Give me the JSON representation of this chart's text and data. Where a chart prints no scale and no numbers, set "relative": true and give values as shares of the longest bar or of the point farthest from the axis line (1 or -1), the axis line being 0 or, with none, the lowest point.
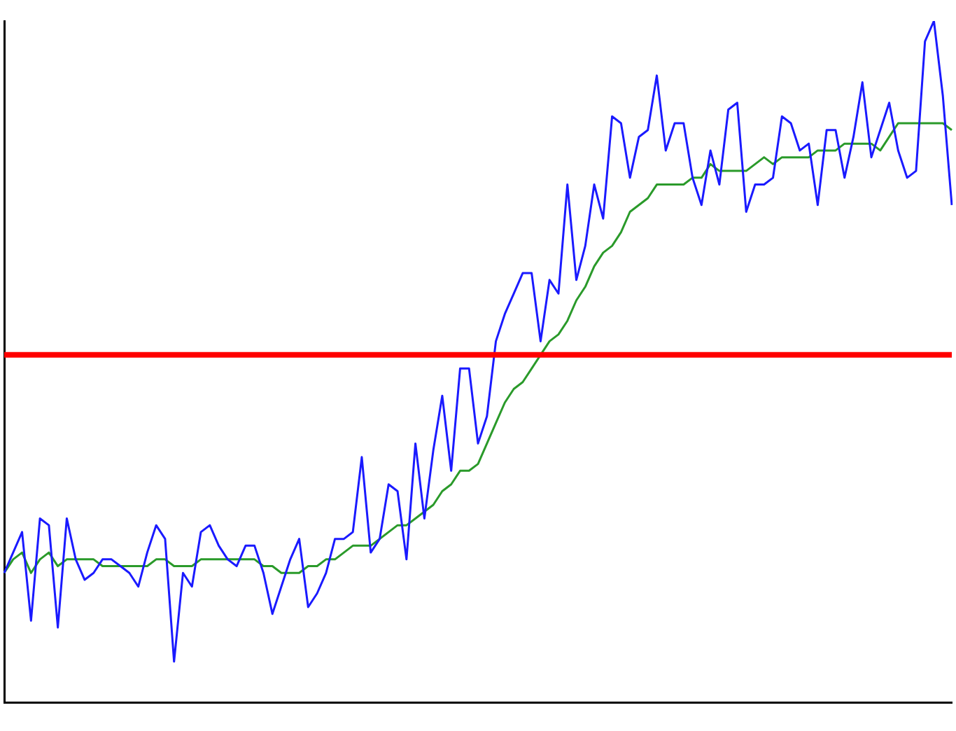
{
  "chart_data": {
    "type": "line",
    "relative": true,
    "legend": false,
    "grid": false,
    "marker": "none",
    "line_style": "solid",
    "categories": [
      null,
      null,
      null,
      null,
      null,
      null,
      null,
      null,
      null,
      null,
      null,
      null,
      null,
      null,
      null,
      null,
      null,
      null,
      null,
      null,
      null,
      null,
      null,
      null,
      null,
      null,
      null,
      null,
      null,
      null,
      null,
      null,
      null,
      null,
      null,
      null,
      null,
      null,
      null,
      null,
      null,
      null,
      null,
      null,
      null,
      null,
      null,
      null,
      null,
      null,
      null,
      null,
      null,
      null,
      null,
      null,
      null,
      null,
      null,
      null,
      null,
      null,
      null,
      null,
      null,
      null,
      null,
      null,
      null,
      null,
      null,
      null,
      null,
      null,
      null,
      null,
      null,
      null,
      null,
      null,
      null,
      null,
      null,
      null,
      null,
      null,
      null,
      null,
      null,
      null,
      null,
      null,
      null,
      null,
      null,
      null,
      null,
      null,
      null,
      null,
      null,
      null,
      null,
      null,
      null,
      null,
      null
    ],
    "series": [
      {
        "color": "#1a1aff",
        "values": [
          0.19,
          0.22,
          0.25,
          0.12,
          0.27,
          0.26,
          0.11,
          0.27,
          0.21,
          0.18,
          0.19,
          0.21,
          0.21,
          0.2,
          0.19,
          0.17,
          0.22,
          0.26,
          0.24,
          0.06,
          0.19,
          0.17,
          0.25,
          0.26,
          0.23,
          0.21,
          0.2,
          0.23,
          0.23,
          0.19,
          0.13,
          0.17,
          0.21,
          0.24,
          0.14,
          0.16,
          0.19,
          0.24,
          0.24,
          0.25,
          0.36,
          0.22,
          0.24,
          0.32,
          0.31,
          0.21,
          0.38,
          0.27,
          0.37,
          0.45,
          0.34,
          0.49,
          0.49,
          0.38,
          0.42,
          0.53,
          0.57,
          0.6,
          0.63,
          0.63,
          0.53,
          0.62,
          0.6,
          0.76,
          0.62,
          0.67,
          0.76,
          0.71,
          0.86,
          0.85,
          0.77,
          0.83,
          0.84,
          0.92,
          0.81,
          0.85,
          0.85,
          0.77,
          0.73,
          0.81,
          0.76,
          0.87,
          0.88,
          0.72,
          0.76,
          0.76,
          0.77,
          0.86,
          0.85,
          0.81,
          0.82,
          0.73,
          0.84,
          0.84,
          0.77,
          0.83,
          0.91,
          0.8,
          0.84,
          0.88,
          0.81,
          0.77,
          0.78,
          0.97,
          1,
          0.89,
          0.73
        ]
      },
      {
        "color": "#2a9a2a",
        "values": [
          0.19,
          0.21,
          0.22,
          0.19,
          0.21,
          0.22,
          0.2,
          0.21,
          0.21,
          0.21,
          0.21,
          0.2,
          0.2,
          0.2,
          0.2,
          0.2,
          0.2,
          0.21,
          0.21,
          0.2,
          0.2,
          0.2,
          0.21,
          0.21,
          0.21,
          0.21,
          0.21,
          0.21,
          0.21,
          0.2,
          0.2,
          0.19,
          0.19,
          0.19,
          0.2,
          0.2,
          0.21,
          0.21,
          0.22,
          0.23,
          0.23,
          0.23,
          0.24,
          0.25,
          0.26,
          0.26,
          0.27,
          0.28,
          0.29,
          0.31,
          0.32,
          0.34,
          0.34,
          0.35,
          0.38,
          0.41,
          0.44,
          0.46,
          0.47,
          0.49,
          0.51,
          0.53,
          0.54,
          0.56,
          0.59,
          0.61,
          0.64,
          0.66,
          0.67,
          0.69,
          0.72,
          0.73,
          0.74,
          0.76,
          0.76,
          0.76,
          0.76,
          0.77,
          0.77,
          0.79,
          0.78,
          0.78,
          0.78,
          0.78,
          0.79,
          0.8,
          0.79,
          0.8,
          0.8,
          0.8,
          0.8,
          0.81,
          0.81,
          0.81,
          0.82,
          0.82,
          0.82,
          0.82,
          0.81,
          0.83,
          0.85,
          0.85,
          0.85,
          0.85,
          0.85,
          0.85,
          0.84
        ]
      }
    ],
    "ref_lines": [
      {
        "axis": "y",
        "value": 0.51,
        "color": "#ff0000"
      }
    ]
  }
}
